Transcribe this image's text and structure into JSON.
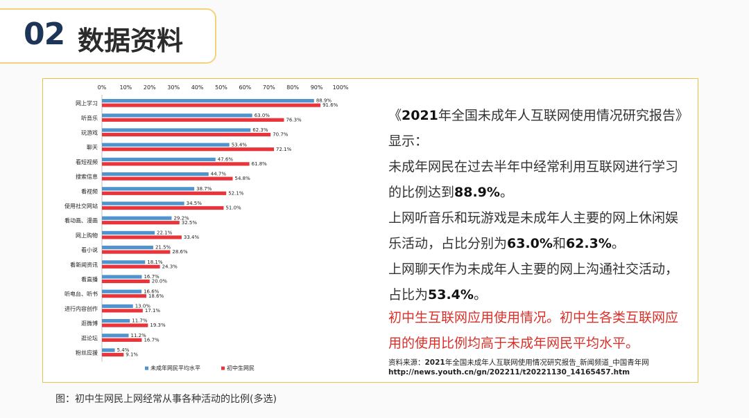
{
  "header": {
    "number": "02",
    "title": "数据资料"
  },
  "chart_data": {
    "type": "bar",
    "orientation": "horizontal",
    "xlim": [
      0,
      100
    ],
    "x_ticks": [
      "0%",
      "10%",
      "20%",
      "30%",
      "40%",
      "50%",
      "60%",
      "70%",
      "80%",
      "90%",
      "100%"
    ],
    "categories": [
      "网上学习",
      "听音乐",
      "玩游戏",
      "聊天",
      "看短视频",
      "搜索信息",
      "看视频",
      "使用社交网站",
      "看动画、漫画",
      "网上购物",
      "看小说",
      "看新闻资讯",
      "看直播",
      "听电台、听书",
      "进行内容创作",
      "逛微博",
      "逛论坛",
      "粉丝应援"
    ],
    "series": [
      {
        "name": "未成年网民平均水平",
        "color": "#4f93cf",
        "values": [
          88.9,
          63.0,
          62.3,
          53.4,
          47.6,
          44.7,
          38.7,
          34.5,
          29.2,
          22.1,
          21.5,
          18.1,
          16.7,
          16.6,
          13.0,
          11.7,
          11.2,
          5.4
        ],
        "labels": [
          "88.9%",
          "63.0%",
          "62.3%",
          "53.4%",
          "47.6%",
          "44.7%",
          "38.7%",
          "34.5%",
          "29.2%",
          "22.1%",
          "21.5%",
          "18.1%",
          "16.7%",
          "16.6%",
          "13.0%",
          "11.7%",
          "11.2%",
          "5.4%"
        ]
      },
      {
        "name": "初中生网民",
        "color": "#e8343a",
        "values": [
          91.6,
          76.3,
          70.7,
          72.1,
          61.8,
          54.8,
          52.1,
          51.0,
          32.5,
          33.4,
          28.6,
          24.3,
          20.0,
          18.6,
          17.1,
          19.3,
          16.7,
          9.1
        ],
        "labels": [
          "91.6%",
          "76.3%",
          "70.7%",
          "72.1%",
          "61.8%",
          "54.8%",
          "52.1%",
          "51.0%",
          "32.5%",
          "33.4%",
          "28.6%",
          "24.3%",
          "20.0%",
          "18.6%",
          "17.1%",
          "19.3%",
          "16.7%",
          "9.1%"
        ]
      }
    ],
    "legend_position": "bottom",
    "grid": false
  },
  "text": {
    "p1_a": "《",
    "p1_year": "2021",
    "p1_b": "年全国未成年人互联网使用情况研究报告》显示：",
    "p2_a": "未成年网民在过去半年中经常利用互联网进行学习的比例达到",
    "p2_v": "88.9%",
    "p2_b": "。",
    "p3_a": "上网听音乐和玩游戏是未成年人主要的网上休闲娱乐活动，占比分别为",
    "p3_v1": "63.0%",
    "p3_and": "和",
    "p3_v2": "62.3%",
    "p3_b": "。",
    "p4_a": "上网聊天作为未成年人主要的网上沟通社交活动，占比为",
    "p4_v": "53.4%",
    "p4_b": "。",
    "p5": "初中生互联网应用使用情况。初中生各类互联网应用的使用比例均高于未成年网民平均水平。"
  },
  "source": {
    "prefix": "资料来源：",
    "year": "2021",
    "rest": "年全国未成年人互联网使用情况研究报告_新闻频道_中国青年网",
    "url": "http://news.youth.cn/gn/202211/t20221130_14165457.htm"
  },
  "caption": "图：初中生网民上网经常从事各种活动的比例(多选)"
}
